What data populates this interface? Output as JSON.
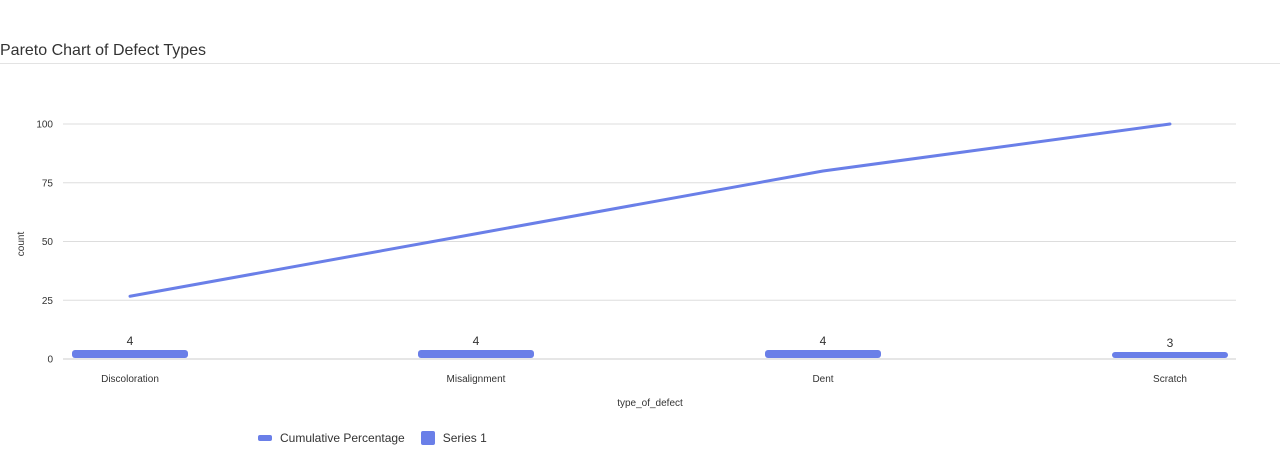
{
  "colors": {
    "series": "#6a7fe8",
    "grid": "#dddddd",
    "axis": "#cccccc"
  },
  "chart_data": {
    "type": "bar",
    "title": "Pareto Chart of Defect Types",
    "xlabel": "type_of_defect",
    "ylabel": "count",
    "ylim": [
      0,
      100
    ],
    "yticks": [
      0,
      25,
      50,
      75,
      100
    ],
    "grid": true,
    "legend_position": "bottom-left",
    "categories": [
      "Discoloration",
      "Misalignment",
      "Dent",
      "Scratch"
    ],
    "series": [
      {
        "name": "Cumulative Percentage",
        "type": "line",
        "values": [
          26.7,
          53.3,
          80.0,
          100.0
        ]
      },
      {
        "name": "Series 1",
        "type": "bar",
        "values": [
          4,
          4,
          4,
          3
        ],
        "data_labels": [
          "4",
          "4",
          "4",
          "3"
        ]
      }
    ]
  }
}
